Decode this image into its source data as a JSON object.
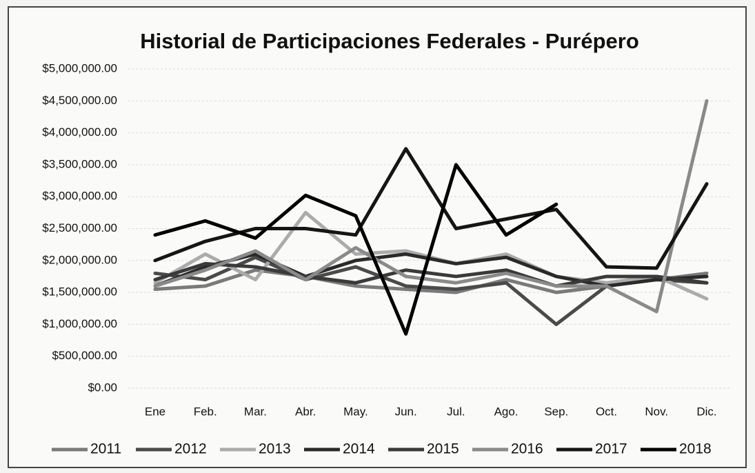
{
  "chart_data": {
    "type": "line",
    "title": "Historial de Participaciones Federales - Purépero",
    "categories": [
      "Ene",
      "Feb.",
      "Mar.",
      "Abr.",
      "May.",
      "Jun.",
      "Jul.",
      "Ago.",
      "Sep.",
      "Oct.",
      "Nov.",
      "Dic."
    ],
    "series": [
      {
        "name": "2011",
        "color": "#7a7a7a",
        "values": [
          1550000,
          1600000,
          1850000,
          1750000,
          1600000,
          1550000,
          1500000,
          1700000,
          1500000,
          1600000,
          1700000,
          1800000
        ]
      },
      {
        "name": "2012",
        "color": "#4a4a4a",
        "values": [
          1800000,
          1700000,
          2050000,
          1700000,
          1900000,
          1600000,
          1550000,
          1650000,
          1000000,
          1600000,
          1700000,
          1650000
        ]
      },
      {
        "name": "2013",
        "color": "#ababab",
        "values": [
          1650000,
          2100000,
          1700000,
          2750000,
          2100000,
          2150000,
          1950000,
          2100000,
          1750000,
          1650000,
          1750000,
          1400000
        ]
      },
      {
        "name": "2014",
        "color": "#2a2a2a",
        "values": [
          1600000,
          1900000,
          2100000,
          1750000,
          2000000,
          2100000,
          1950000,
          2050000,
          1750000,
          1600000,
          1700000,
          1750000
        ]
      },
      {
        "name": "2015",
        "color": "#3a3a3a",
        "values": [
          1700000,
          1950000,
          1900000,
          1750000,
          1650000,
          1850000,
          1750000,
          1850000,
          1600000,
          1750000,
          1750000,
          1650000
        ]
      },
      {
        "name": "2016",
        "color": "#8a8a8a",
        "values": [
          1600000,
          1850000,
          2150000,
          1700000,
          2200000,
          1750000,
          1650000,
          1800000,
          1600000,
          1600000,
          1200000,
          4500000
        ]
      },
      {
        "name": "2017",
        "color": "#151515",
        "values": [
          2000000,
          2300000,
          2500000,
          2500000,
          2400000,
          3750000,
          2500000,
          2650000,
          2800000,
          1900000,
          1880000,
          3200000
        ]
      },
      {
        "name": "2018",
        "color": "#000000",
        "values": [
          2400000,
          2620000,
          2350000,
          3020000,
          2700000,
          850000,
          3500000,
          2400000,
          2880000,
          null,
          null,
          null
        ]
      }
    ],
    "ylim": [
      0,
      5000000
    ],
    "yticks": [
      {
        "value": 0,
        "label": "$0.00"
      },
      {
        "value": 500000,
        "label": "$500,000.00"
      },
      {
        "value": 1000000,
        "label": "$1,000,000.00"
      },
      {
        "value": 1500000,
        "label": "$1,500,000.00"
      },
      {
        "value": 2000000,
        "label": "$2,000,000.00"
      },
      {
        "value": 2500000,
        "label": "$2,500,000.00"
      },
      {
        "value": 3000000,
        "label": "$3,000,000.00"
      },
      {
        "value": 3500000,
        "label": "$3,500,000.00"
      },
      {
        "value": 4000000,
        "label": "$4,000,000.00"
      },
      {
        "value": 4500000,
        "label": "$4,500,000.00"
      },
      {
        "value": 5000000,
        "label": "$5,000,000.00"
      }
    ],
    "grid": true,
    "legend": "bottom"
  }
}
